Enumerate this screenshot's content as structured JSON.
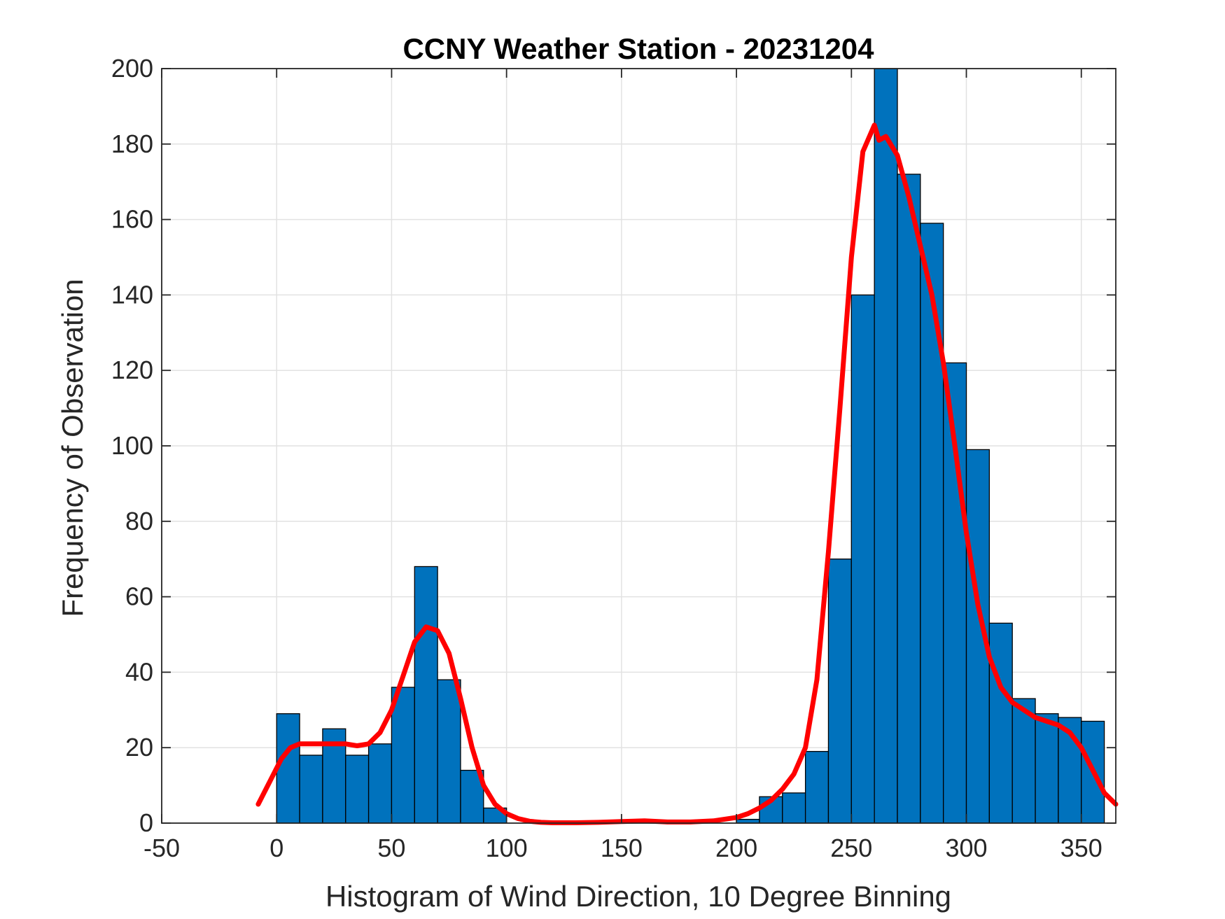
{
  "chart_data": {
    "type": "bar",
    "title": "CCNY Weather Station - 20231204",
    "xlabel": "Histogram of Wind Direction, 10 Degree Binning",
    "ylabel": "Frequency of Observation",
    "xlim": [
      -50,
      365
    ],
    "ylim": [
      0,
      200
    ],
    "xticks": [
      -50,
      0,
      50,
      100,
      150,
      200,
      250,
      300,
      350
    ],
    "yticks": [
      0,
      20,
      40,
      60,
      80,
      100,
      120,
      140,
      160,
      180,
      200
    ],
    "grid": true,
    "bin_width": 10,
    "bins": [
      {
        "x0": 0,
        "x1": 10,
        "value": 29
      },
      {
        "x0": 10,
        "x1": 20,
        "value": 18
      },
      {
        "x0": 20,
        "x1": 30,
        "value": 25
      },
      {
        "x0": 30,
        "x1": 40,
        "value": 18
      },
      {
        "x0": 40,
        "x1": 50,
        "value": 21
      },
      {
        "x0": 50,
        "x1": 60,
        "value": 36
      },
      {
        "x0": 60,
        "x1": 70,
        "value": 68
      },
      {
        "x0": 70,
        "x1": 80,
        "value": 38
      },
      {
        "x0": 80,
        "x1": 90,
        "value": 14
      },
      {
        "x0": 90,
        "x1": 100,
        "value": 4
      },
      {
        "x0": 100,
        "x1": 110,
        "value": 0
      },
      {
        "x0": 110,
        "x1": 120,
        "value": 0
      },
      {
        "x0": 120,
        "x1": 130,
        "value": 0
      },
      {
        "x0": 130,
        "x1": 140,
        "value": 0
      },
      {
        "x0": 140,
        "x1": 150,
        "value": 0
      },
      {
        "x0": 150,
        "x1": 160,
        "value": 0
      },
      {
        "x0": 160,
        "x1": 170,
        "value": 0
      },
      {
        "x0": 170,
        "x1": 180,
        "value": 0
      },
      {
        "x0": 180,
        "x1": 190,
        "value": 0
      },
      {
        "x0": 190,
        "x1": 200,
        "value": 0
      },
      {
        "x0": 200,
        "x1": 210,
        "value": 1
      },
      {
        "x0": 210,
        "x1": 220,
        "value": 7
      },
      {
        "x0": 220,
        "x1": 230,
        "value": 8
      },
      {
        "x0": 230,
        "x1": 240,
        "value": 19
      },
      {
        "x0": 240,
        "x1": 250,
        "value": 70
      },
      {
        "x0": 250,
        "x1": 260,
        "value": 140
      },
      {
        "x0": 260,
        "x1": 270,
        "value": 200
      },
      {
        "x0": 270,
        "x1": 280,
        "value": 172
      },
      {
        "x0": 280,
        "x1": 290,
        "value": 159
      },
      {
        "x0": 290,
        "x1": 300,
        "value": 122
      },
      {
        "x0": 300,
        "x1": 310,
        "value": 99
      },
      {
        "x0": 310,
        "x1": 320,
        "value": 53
      },
      {
        "x0": 320,
        "x1": 330,
        "value": 33
      },
      {
        "x0": 330,
        "x1": 340,
        "value": 29
      },
      {
        "x0": 340,
        "x1": 350,
        "value": 28
      },
      {
        "x0": 350,
        "x1": 360,
        "value": 27
      }
    ],
    "density_curve": {
      "x": [
        -8,
        -3,
        2,
        6,
        10,
        15,
        20,
        25,
        30,
        35,
        40,
        45,
        50,
        55,
        60,
        65,
        70,
        75,
        80,
        85,
        90,
        95,
        100,
        105,
        110,
        115,
        120,
        130,
        140,
        150,
        160,
        170,
        180,
        190,
        200,
        205,
        210,
        215,
        220,
        225,
        230,
        235,
        240,
        245,
        250,
        255,
        260,
        262,
        265,
        268,
        270,
        275,
        280,
        285,
        290,
        295,
        300,
        305,
        310,
        315,
        320,
        325,
        330,
        335,
        340,
        345,
        350,
        355,
        360,
        365
      ],
      "y": [
        5,
        11,
        17,
        20,
        21,
        21,
        21,
        21,
        21,
        20.5,
        21,
        24,
        30,
        39,
        48,
        52,
        51,
        45,
        33,
        20,
        10,
        5,
        2.5,
        1.2,
        0.5,
        0.2,
        0.1,
        0.1,
        0.2,
        0.4,
        0.6,
        0.3,
        0.3,
        0.6,
        1.5,
        2.5,
        4,
        6,
        9,
        13,
        20,
        38,
        72,
        110,
        150,
        178,
        185,
        181,
        182,
        179,
        177,
        166,
        153,
        140,
        122,
        100,
        77,
        58,
        44,
        36,
        32,
        30,
        28,
        27,
        26,
        24,
        20,
        14,
        8,
        5
      ],
      "color": "#ff0000"
    },
    "colors": {
      "bar_fill": "#0072bd",
      "bar_edge": "#000000",
      "curve": "#ff0000",
      "grid": "#e2e2e2",
      "axis": "#262626"
    }
  }
}
